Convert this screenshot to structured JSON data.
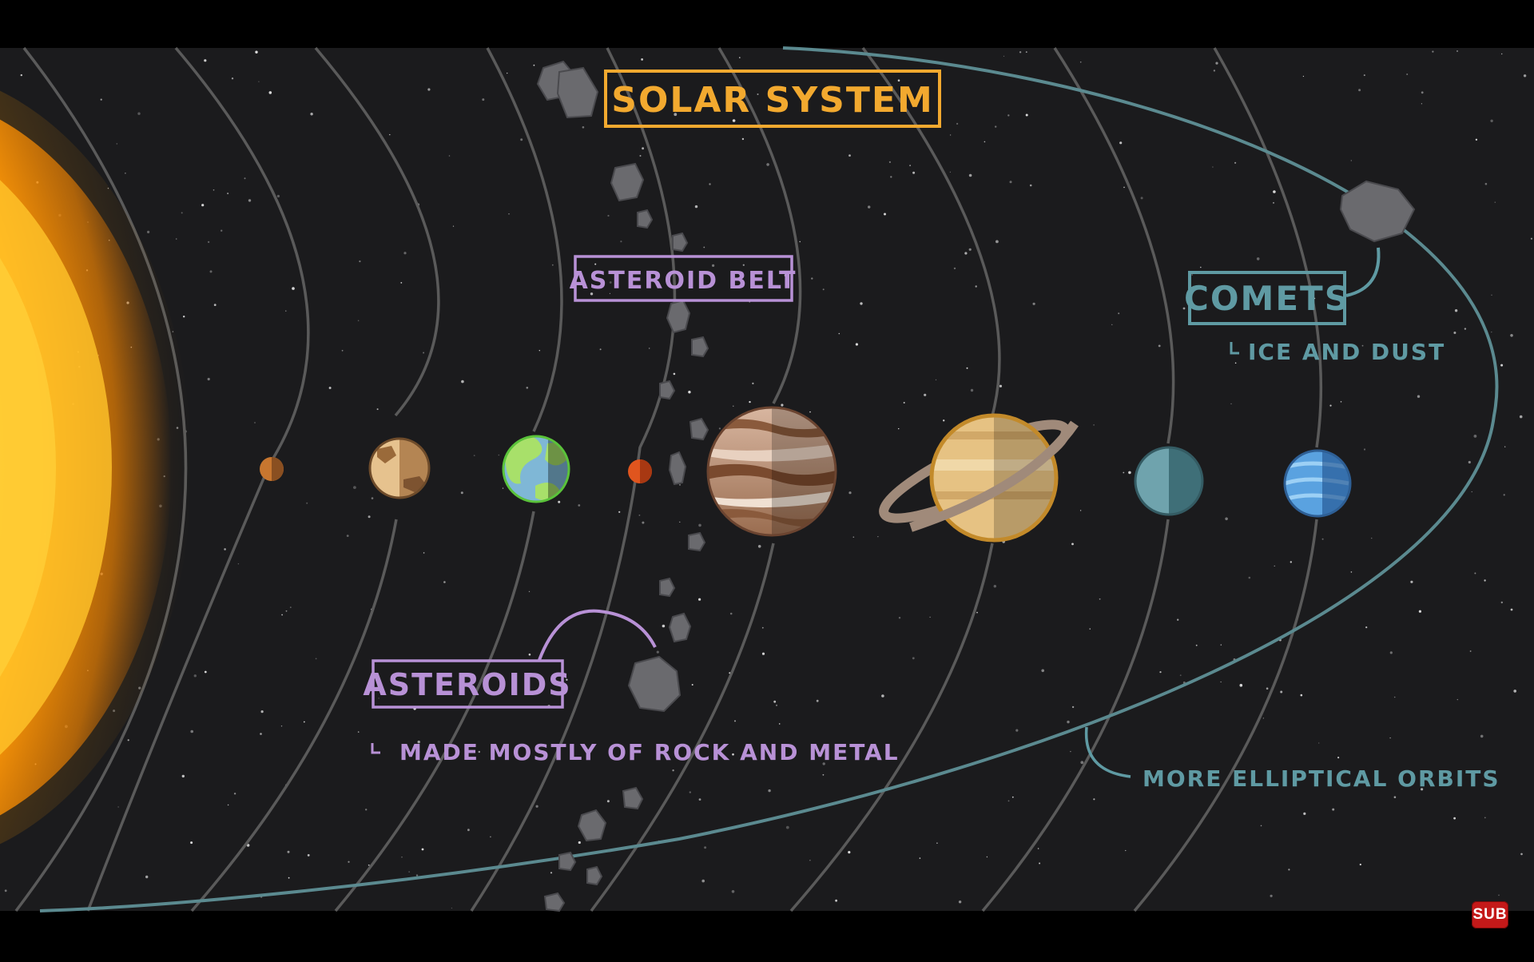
{
  "title": "SOLAR SYSTEM",
  "labels": {
    "asteroid_belt": "ASTEROID BELT",
    "asteroids": "ASTEROIDS",
    "asteroids_note": "MADE MOSTLY OF ROCK AND METAL",
    "comets": "COMETS",
    "comets_note": "ICE AND DUST",
    "elliptical_note": "MORE ELLIPTICAL ORBITS"
  },
  "badge": "SUB",
  "colors": {
    "title": "#f2a92f",
    "asteroid": "#b891d6",
    "comet": "#5f9aa3",
    "orbit": "#5a5a5a",
    "comet_orbit": "#5b8a90"
  },
  "planets": [
    "mercury",
    "venus",
    "earth",
    "mars",
    "jupiter",
    "saturn",
    "uranus",
    "neptune"
  ]
}
